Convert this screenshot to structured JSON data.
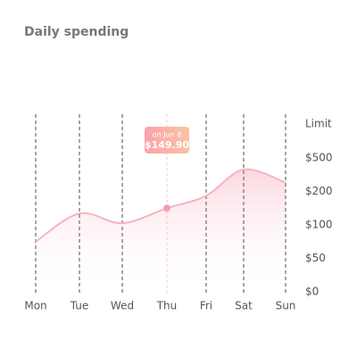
{
  "chart_data": {
    "type": "line",
    "title": "Daily spending",
    "categories": [
      "Mon",
      "Tue",
      "Wed",
      "Thu",
      "Fri",
      "Sat",
      "Sun"
    ],
    "values": [
      75,
      134,
      105,
      149.9,
      187,
      397,
      279
    ],
    "color": "#f7b3bf",
    "limit_label": "Limit",
    "yticks": [
      {
        "value": 500,
        "label": "$500"
      },
      {
        "value": 200,
        "label": "$200"
      },
      {
        "value": 100,
        "label": "$100"
      },
      {
        "value": 50,
        "label": "$50"
      },
      {
        "value": 0,
        "label": "$0"
      }
    ],
    "tooltip": {
      "x": "Thu",
      "title": "on Jun 8",
      "label": "$149.90"
    }
  }
}
